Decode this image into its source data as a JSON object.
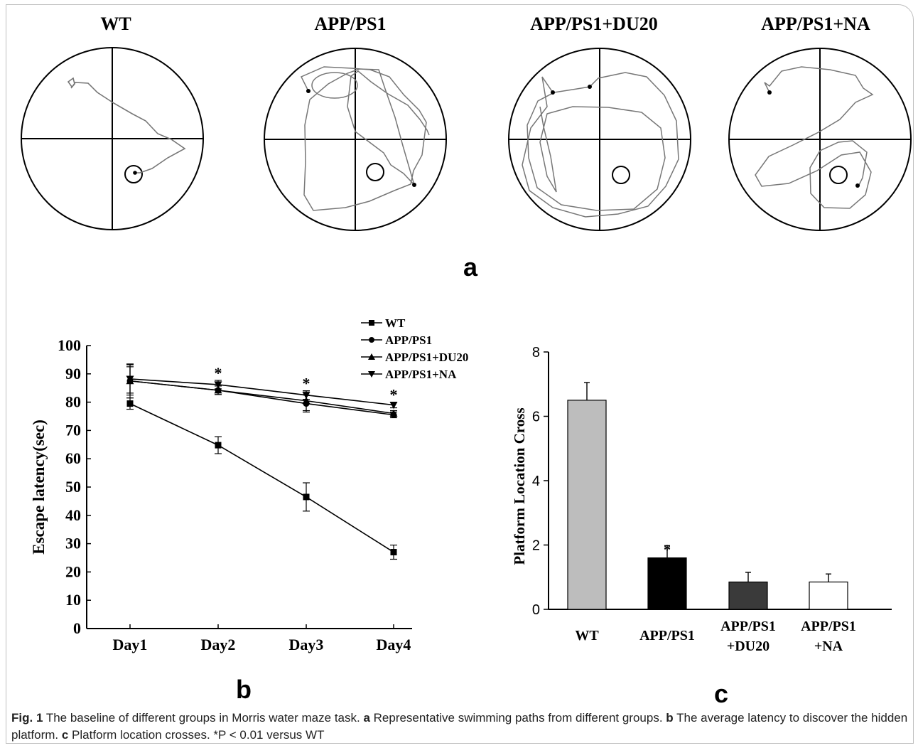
{
  "panel_a": {
    "label": "a",
    "groups": [
      "WT",
      "APP/PS1",
      "APP/PS1+DU20",
      "APP/PS1+NA"
    ]
  },
  "panel_labels": {
    "b": "b",
    "c": "c"
  },
  "caption": {
    "fig_label": "Fig. 1",
    "intro": " The baseline of different groups in Morris water maze task. ",
    "a_label": "a",
    "a_text": " Representative swimming paths from different groups. ",
    "b_label": "b",
    "b_text": " The average latency to discover the hidden platform. ",
    "c_label": "c",
    "c_text": " Platform location crosses. *P < 0.01 versus WT"
  },
  "chart_data": [
    {
      "type": "line",
      "ylabel": "Escape latency(sec)",
      "xlabel": "",
      "categories": [
        "Day1",
        "Day2",
        "Day3",
        "Day4"
      ],
      "ylim": [
        0,
        100
      ],
      "yticks": [
        0,
        10,
        20,
        30,
        40,
        50,
        60,
        70,
        80,
        90,
        100
      ],
      "legend_position": "top-right",
      "series": [
        {
          "name": "WT",
          "marker": "square",
          "values": [
            79.5,
            64.8,
            46.5,
            27
          ],
          "errors": [
            2,
            3,
            5,
            2.5
          ]
        },
        {
          "name": "APP/PS1",
          "marker": "circle",
          "values": [
            87.5,
            84.2,
            79.5,
            75.5
          ],
          "errors": [
            5,
            1.5,
            3,
            1
          ]
        },
        {
          "name": "APP/PS1+DU20",
          "marker": "triangle-up",
          "values": [
            87.5,
            84.2,
            80.5,
            76
          ],
          "errors": [
            6,
            1.5,
            3.5,
            1
          ]
        },
        {
          "name": "APP/PS1+NA",
          "marker": "triangle-down",
          "values": [
            88.2,
            86.2,
            82.5,
            79
          ],
          "errors": [
            5,
            1.5,
            1.5,
            1
          ]
        }
      ],
      "annotations": [
        {
          "text": "*",
          "category": "Day2"
        },
        {
          "text": "*",
          "category": "Day3"
        },
        {
          "text": "*",
          "category": "Day4"
        }
      ],
      "grid": false
    },
    {
      "type": "bar",
      "ylabel": "Platform  Location Cross",
      "xlabel": "",
      "categories": [
        "WT",
        "APP/PS1",
        "APP/PS1\n+DU20",
        "APP/PS1\n+NA"
      ],
      "values": [
        6.5,
        1.6,
        0.85,
        0.85
      ],
      "errors": [
        0.55,
        0.38,
        0.3,
        0.25
      ],
      "colors": [
        "#bdbdbd",
        "#000000",
        "#3a3a3a",
        "#ffffff"
      ],
      "ylim": [
        0,
        8
      ],
      "yticks": [
        0,
        2,
        4,
        6,
        8
      ],
      "annotations": [
        {
          "text": "*",
          "category": "APP/PS1"
        }
      ],
      "grid": false
    }
  ]
}
